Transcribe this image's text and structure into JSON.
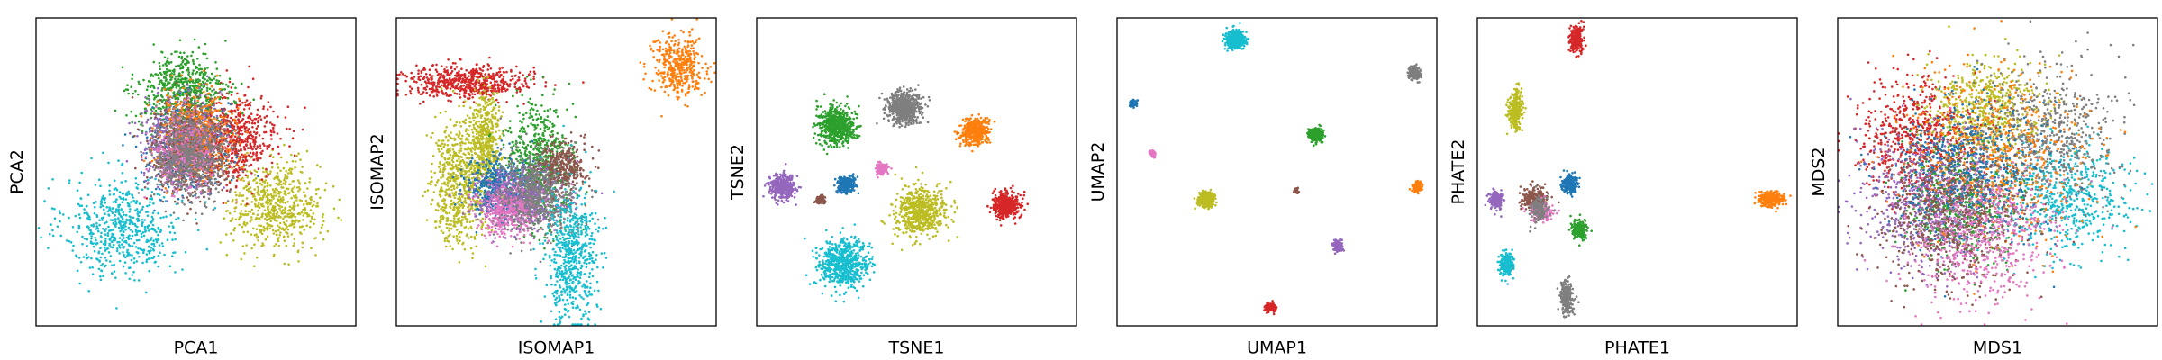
{
  "colors": {
    "blue": "#1f77b4",
    "orange": "#ff7f0e",
    "green": "#2ca02c",
    "red": "#d62728",
    "purple": "#9467bd",
    "brown": "#8c564b",
    "pink": "#e377c2",
    "gray": "#7f7f7f",
    "olive": "#bcbd22",
    "cyan": "#17becf"
  },
  "chart_data": [
    {
      "type": "scatter",
      "xlabel": "PCA1",
      "ylabel": "PCA2",
      "grid": false,
      "ticks": false,
      "xlim": [
        0,
        1
      ],
      "ylim": [
        0,
        1
      ],
      "clusters": [
        {
          "color": "cyan",
          "center": [
            0.27,
            0.32
          ],
          "spread": [
            0.09,
            0.08
          ],
          "n": 2200
        },
        {
          "color": "olive",
          "center": [
            0.75,
            0.39
          ],
          "spread": [
            0.07,
            0.07
          ],
          "n": 1800
        },
        {
          "color": "red",
          "center": [
            0.62,
            0.61
          ],
          "spread": [
            0.07,
            0.07
          ],
          "n": 1200
        },
        {
          "color": "green",
          "center": [
            0.46,
            0.76
          ],
          "spread": [
            0.07,
            0.06
          ],
          "n": 1800
        },
        {
          "color": "blue",
          "center": [
            0.47,
            0.58
          ],
          "spread": [
            0.06,
            0.07
          ],
          "n": 500
        },
        {
          "color": "purple",
          "center": [
            0.46,
            0.6
          ],
          "spread": [
            0.06,
            0.07
          ],
          "n": 700
        },
        {
          "color": "orange",
          "center": [
            0.5,
            0.62
          ],
          "spread": [
            0.06,
            0.07
          ],
          "n": 600
        },
        {
          "color": "brown",
          "center": [
            0.48,
            0.57
          ],
          "spread": [
            0.06,
            0.07
          ],
          "n": 500
        },
        {
          "color": "pink",
          "center": [
            0.47,
            0.56
          ],
          "spread": [
            0.05,
            0.06
          ],
          "n": 400
        },
        {
          "color": "gray",
          "center": [
            0.48,
            0.55
          ],
          "spread": [
            0.06,
            0.07
          ],
          "n": 1100
        }
      ]
    },
    {
      "type": "scatter",
      "xlabel": "ISOMAP1",
      "ylabel": "ISOMAP2",
      "grid": false,
      "ticks": false,
      "xlim": [
        0,
        1
      ],
      "ylim": [
        0,
        1
      ],
      "clusters": [
        {
          "color": "orange",
          "center": [
            0.88,
            0.84
          ],
          "spread": [
            0.04,
            0.05
          ],
          "n": 400
        },
        {
          "color": "red",
          "center": [
            0.22,
            0.79
          ],
          "spread": [
            0.1,
            0.025
          ],
          "n": 800
        },
        {
          "color": "olive",
          "center": [
            0.19,
            0.47
          ],
          "spread": [
            0.04,
            0.1
          ],
          "n": 900
        },
        {
          "color": "olive",
          "center": [
            0.28,
            0.58
          ],
          "spread": [
            0.025,
            0.09
          ],
          "n": 500
        },
        {
          "color": "green",
          "center": [
            0.44,
            0.53
          ],
          "spread": [
            0.05,
            0.1
          ],
          "n": 900
        },
        {
          "color": "blue",
          "center": [
            0.32,
            0.45
          ],
          "spread": [
            0.05,
            0.05
          ],
          "n": 500
        },
        {
          "color": "purple",
          "center": [
            0.38,
            0.42
          ],
          "spread": [
            0.07,
            0.05
          ],
          "n": 700
        },
        {
          "color": "pink",
          "center": [
            0.35,
            0.37
          ],
          "spread": [
            0.05,
            0.04
          ],
          "n": 400
        },
        {
          "color": "gray",
          "center": [
            0.45,
            0.43
          ],
          "spread": [
            0.06,
            0.07
          ],
          "n": 900
        },
        {
          "color": "brown",
          "center": [
            0.52,
            0.52
          ],
          "spread": [
            0.04,
            0.04
          ],
          "n": 300
        },
        {
          "color": "cyan",
          "center": [
            0.55,
            0.22
          ],
          "spread": [
            0.04,
            0.11
          ],
          "n": 1000
        }
      ]
    },
    {
      "type": "scatter",
      "xlabel": "TSNE1",
      "ylabel": "TSNE2",
      "grid": false,
      "ticks": false,
      "xlim": [
        0,
        1
      ],
      "ylim": [
        0,
        1
      ],
      "clusters": [
        {
          "color": "green",
          "center": [
            0.25,
            0.65
          ],
          "spread": [
            0.03,
            0.03
          ],
          "n": 900
        },
        {
          "color": "gray",
          "center": [
            0.46,
            0.71
          ],
          "spread": [
            0.025,
            0.025
          ],
          "n": 700
        },
        {
          "color": "orange",
          "center": [
            0.68,
            0.63
          ],
          "spread": [
            0.02,
            0.02
          ],
          "n": 500
        },
        {
          "color": "purple",
          "center": [
            0.08,
            0.45
          ],
          "spread": [
            0.02,
            0.02
          ],
          "n": 400
        },
        {
          "color": "brown",
          "center": [
            0.2,
            0.41
          ],
          "spread": [
            0.008,
            0.008
          ],
          "n": 80
        },
        {
          "color": "blue",
          "center": [
            0.28,
            0.46
          ],
          "spread": [
            0.014,
            0.014
          ],
          "n": 250
        },
        {
          "color": "pink",
          "center": [
            0.39,
            0.51
          ],
          "spread": [
            0.01,
            0.01
          ],
          "n": 120
        },
        {
          "color": "olive",
          "center": [
            0.51,
            0.37
          ],
          "spread": [
            0.04,
            0.04
          ],
          "n": 1600
        },
        {
          "color": "red",
          "center": [
            0.78,
            0.39
          ],
          "spread": [
            0.02,
            0.02
          ],
          "n": 500
        },
        {
          "color": "cyan",
          "center": [
            0.27,
            0.2
          ],
          "spread": [
            0.04,
            0.04
          ],
          "n": 1600
        }
      ]
    },
    {
      "type": "scatter",
      "xlabel": "UMAP1",
      "ylabel": "UMAP2",
      "grid": false,
      "ticks": false,
      "xlim": [
        0,
        1
      ],
      "ylim": [
        0,
        1
      ],
      "clusters": [
        {
          "color": "cyan",
          "center": [
            0.37,
            0.93
          ],
          "spread": [
            0.014,
            0.014
          ],
          "n": 500
        },
        {
          "color": "gray",
          "center": [
            0.93,
            0.82
          ],
          "spread": [
            0.008,
            0.01
          ],
          "n": 200
        },
        {
          "color": "blue",
          "center": [
            0.05,
            0.72
          ],
          "spread": [
            0.006,
            0.006
          ],
          "n": 80
        },
        {
          "color": "green",
          "center": [
            0.62,
            0.62
          ],
          "spread": [
            0.01,
            0.01
          ],
          "n": 300
        },
        {
          "color": "pink",
          "center": [
            0.11,
            0.56
          ],
          "spread": [
            0.005,
            0.005
          ],
          "n": 50
        },
        {
          "color": "brown",
          "center": [
            0.56,
            0.44
          ],
          "spread": [
            0.004,
            0.004
          ],
          "n": 30
        },
        {
          "color": "olive",
          "center": [
            0.28,
            0.41
          ],
          "spread": [
            0.012,
            0.012
          ],
          "n": 400
        },
        {
          "color": "orange",
          "center": [
            0.94,
            0.45
          ],
          "spread": [
            0.007,
            0.008
          ],
          "n": 150
        },
        {
          "color": "purple",
          "center": [
            0.69,
            0.26
          ],
          "spread": [
            0.008,
            0.008
          ],
          "n": 150
        },
        {
          "color": "red",
          "center": [
            0.48,
            0.06
          ],
          "spread": [
            0.008,
            0.008
          ],
          "n": 150
        }
      ]
    },
    {
      "type": "scatter",
      "xlabel": "PHATE1",
      "ylabel": "PHATE2",
      "grid": false,
      "ticks": false,
      "xlim": [
        0,
        1
      ],
      "ylim": [
        0,
        1
      ],
      "clusters": [
        {
          "color": "red",
          "center": [
            0.31,
            0.93
          ],
          "spread": [
            0.01,
            0.02
          ],
          "n": 250
        },
        {
          "color": "olive",
          "center": [
            0.12,
            0.7
          ],
          "spread": [
            0.01,
            0.03
          ],
          "n": 300
        },
        {
          "color": "blue",
          "center": [
            0.29,
            0.46
          ],
          "spread": [
            0.012,
            0.015
          ],
          "n": 250
        },
        {
          "color": "purple",
          "center": [
            0.06,
            0.41
          ],
          "spread": [
            0.01,
            0.015
          ],
          "n": 200
        },
        {
          "color": "brown",
          "center": [
            0.18,
            0.41
          ],
          "spread": [
            0.02,
            0.02
          ],
          "n": 250
        },
        {
          "color": "pink",
          "center": [
            0.2,
            0.37
          ],
          "spread": [
            0.015,
            0.015
          ],
          "n": 150
        },
        {
          "color": "gray",
          "center": [
            0.19,
            0.38
          ],
          "spread": [
            0.015,
            0.02
          ],
          "n": 150
        },
        {
          "color": "green",
          "center": [
            0.32,
            0.31
          ],
          "spread": [
            0.012,
            0.015
          ],
          "n": 200
        },
        {
          "color": "cyan",
          "center": [
            0.09,
            0.2
          ],
          "spread": [
            0.01,
            0.02
          ],
          "n": 200
        },
        {
          "color": "gray",
          "center": [
            0.28,
            0.09
          ],
          "spread": [
            0.01,
            0.025
          ],
          "n": 250
        },
        {
          "color": "orange",
          "center": [
            0.92,
            0.41
          ],
          "spread": [
            0.02,
            0.012
          ],
          "n": 250
        }
      ]
    },
    {
      "type": "scatter",
      "xlabel": "MDS1",
      "ylabel": "MDS2",
      "grid": false,
      "ticks": false,
      "xlim": [
        0,
        1
      ],
      "ylim": [
        0,
        1
      ],
      "clusters": [
        {
          "color": "olive",
          "center": [
            0.46,
            0.7
          ],
          "spread": [
            0.09,
            0.08
          ],
          "n": 2000
        },
        {
          "color": "cyan",
          "center": [
            0.7,
            0.42
          ],
          "spread": [
            0.1,
            0.09
          ],
          "n": 2000
        },
        {
          "color": "green",
          "center": [
            0.38,
            0.4
          ],
          "spread": [
            0.09,
            0.09
          ],
          "n": 1200
        },
        {
          "color": "red",
          "center": [
            0.25,
            0.62
          ],
          "spread": [
            0.09,
            0.1
          ],
          "n": 1000
        },
        {
          "color": "gray",
          "center": [
            0.65,
            0.62
          ],
          "spread": [
            0.11,
            0.11
          ],
          "n": 1000
        },
        {
          "color": "purple",
          "center": [
            0.28,
            0.4
          ],
          "spread": [
            0.11,
            0.11
          ],
          "n": 800
        },
        {
          "color": "orange",
          "center": [
            0.5,
            0.55
          ],
          "spread": [
            0.14,
            0.14
          ],
          "n": 800
        },
        {
          "color": "blue",
          "center": [
            0.4,
            0.5
          ],
          "spread": [
            0.12,
            0.12
          ],
          "n": 700
        },
        {
          "color": "brown",
          "center": [
            0.35,
            0.35
          ],
          "spread": [
            0.11,
            0.11
          ],
          "n": 600
        },
        {
          "color": "pink",
          "center": [
            0.45,
            0.3
          ],
          "spread": [
            0.12,
            0.11
          ],
          "n": 600
        }
      ]
    }
  ]
}
